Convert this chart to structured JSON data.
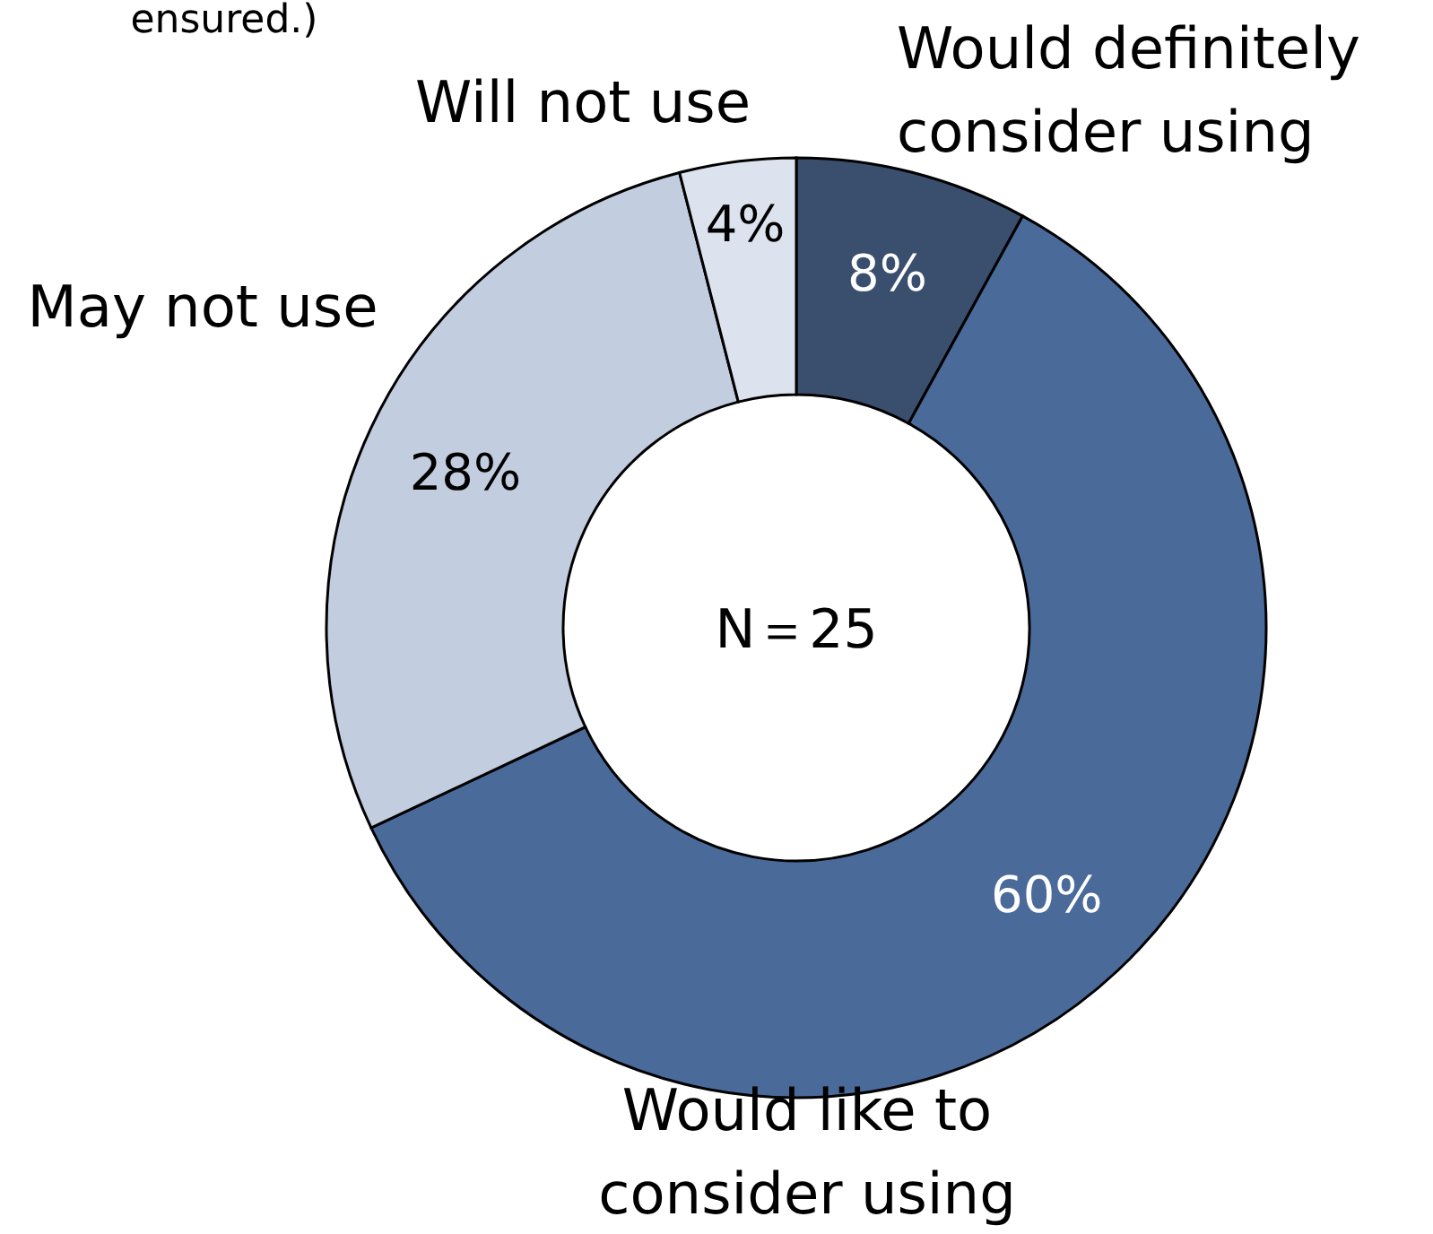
{
  "chart_data": {
    "type": "donut",
    "categories": [
      "Would definitely consider using",
      "Would like to consider using",
      "May not use",
      "Will not use"
    ],
    "values": [
      8,
      60,
      28,
      4
    ],
    "colors": [
      "#3a4e6e",
      "#4a6a9a",
      "#c3cde0",
      "#dde3ee"
    ],
    "value_labels": [
      "8%",
      "60%",
      "28%",
      "4%"
    ],
    "annotations": [
      "ensured.)",
      "N＝25"
    ]
  }
}
